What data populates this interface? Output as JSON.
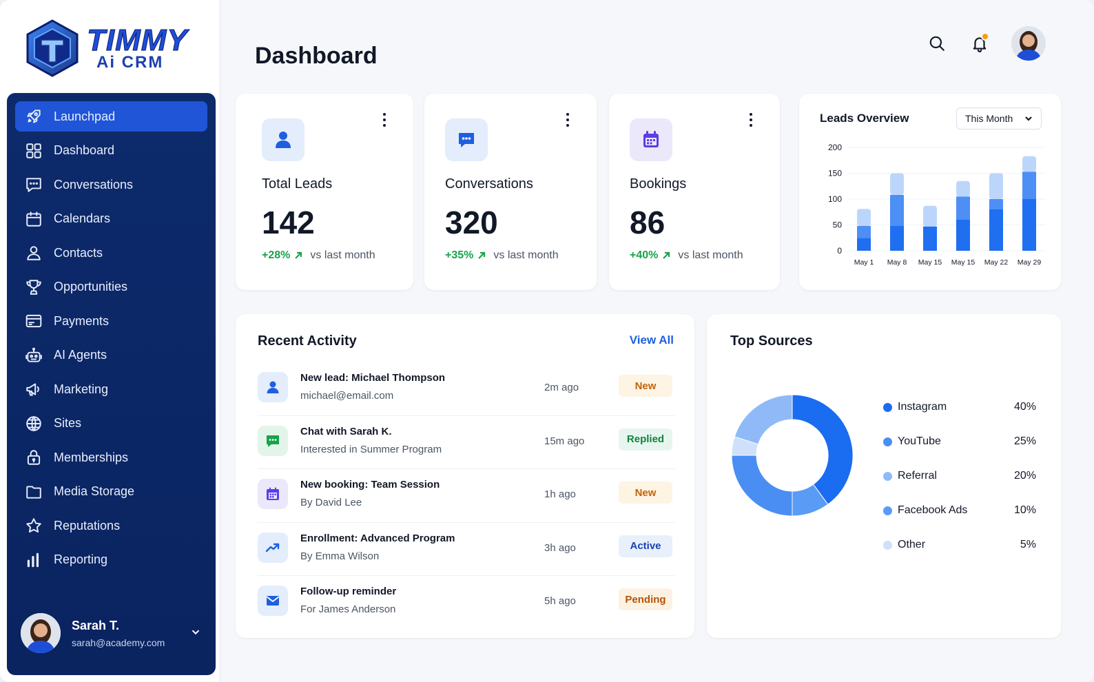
{
  "brand": {
    "line1": "TIMMY",
    "line2": "Ai CRM"
  },
  "sidebar": {
    "items": [
      {
        "label": "Launchpad",
        "icon": "rocket-icon",
        "active": true
      },
      {
        "label": "Dashboard",
        "icon": "grid-icon"
      },
      {
        "label": "Conversations",
        "icon": "chat-icon"
      },
      {
        "label": "Calendars",
        "icon": "calendar-icon"
      },
      {
        "label": "Contacts",
        "icon": "user-icon"
      },
      {
        "label": "Opportunities",
        "icon": "trophy-icon"
      },
      {
        "label": "Payments",
        "icon": "card-icon"
      },
      {
        "label": "AI Agents",
        "icon": "robot-icon"
      },
      {
        "label": "Marketing",
        "icon": "megaphone-icon"
      },
      {
        "label": "Sites",
        "icon": "globe-icon"
      },
      {
        "label": "Memberships",
        "icon": "lock-icon"
      },
      {
        "label": "Media Storage",
        "icon": "folder-icon"
      },
      {
        "label": "Reputations",
        "icon": "star-icon"
      },
      {
        "label": "Reporting",
        "icon": "bar-chart-icon"
      }
    ],
    "user": {
      "name": "Sarah T.",
      "email": "sarah@academy.com"
    }
  },
  "header": {
    "title": "Dashboard"
  },
  "stats": [
    {
      "label": "Total Leads",
      "value": "142",
      "trend": "+28%",
      "trend_text": "vs last month",
      "icon": "user-icon"
    },
    {
      "label": "Conversations",
      "value": "320",
      "trend": "+35%",
      "trend_text": "vs last month",
      "icon": "chat-icon"
    },
    {
      "label": "Bookings",
      "value": "86",
      "trend": "+40%",
      "trend_text": "vs last month",
      "icon": "calendar-icon"
    }
  ],
  "leads_overview": {
    "title": "Leads Overview",
    "range": "This Month"
  },
  "chart_data": {
    "type": "bar",
    "title": "Leads Overview",
    "categories": [
      "May 1",
      "May 8",
      "May 15",
      "May 15",
      "May 22",
      "May 29"
    ],
    "series": [
      {
        "values": [
          25,
          48,
          47,
          60,
          80,
          100
        ]
      },
      {
        "values": [
          23,
          60,
          0,
          45,
          20,
          53
        ]
      },
      {
        "values": [
          33,
          42,
          40,
          30,
          50,
          30
        ]
      }
    ],
    "yticks": [
      0,
      50,
      100,
      150,
      200
    ],
    "ylim": [
      0,
      200
    ],
    "grid": true,
    "colors": [
      "#1f6ff0",
      "#4d8ff5",
      "#bcd6fb"
    ]
  },
  "activity": {
    "title": "Recent Activity",
    "view_all": "View All",
    "items": [
      {
        "title": "New lead: Michael Thompson",
        "sub": "michael@email.com",
        "time": "2m ago",
        "badge": "New",
        "kind": "new",
        "icon": "user-icon"
      },
      {
        "title": "Chat with Sarah K.",
        "sub": "Interested in Summer Program",
        "time": "15m ago",
        "badge": "Replied",
        "kind": "replied",
        "icon": "chat-icon"
      },
      {
        "title": "New booking: Team Session",
        "sub": "By David Lee",
        "time": "1h ago",
        "badge": "New",
        "kind": "new",
        "icon": "calendar-icon"
      },
      {
        "title": "Enrollment: Advanced Program",
        "sub": "By Emma Wilson",
        "time": "3h ago",
        "badge": "Active",
        "kind": "active",
        "icon": "trend-up-icon"
      },
      {
        "title": "Follow-up reminder",
        "sub": "For James Anderson",
        "time": "5h ago",
        "badge": "Pending",
        "kind": "pending",
        "icon": "mail-icon"
      }
    ]
  },
  "sources": {
    "title": "Top Sources",
    "items": [
      {
        "label": "Instagram",
        "pct": "40%",
        "value": 40,
        "color": "#1a6cf0"
      },
      {
        "label": "YouTube",
        "pct": "25%",
        "value": 25,
        "color": "#4a8ef3"
      },
      {
        "label": "Referral",
        "pct": "20%",
        "value": 20,
        "color": "#8fbaf7"
      },
      {
        "label": "Facebook Ads",
        "pct": "10%",
        "value": 10,
        "color": "#5a9bf5"
      },
      {
        "label": "Other",
        "pct": "5%",
        "value": 5,
        "color": "#cfe0fb"
      }
    ]
  }
}
